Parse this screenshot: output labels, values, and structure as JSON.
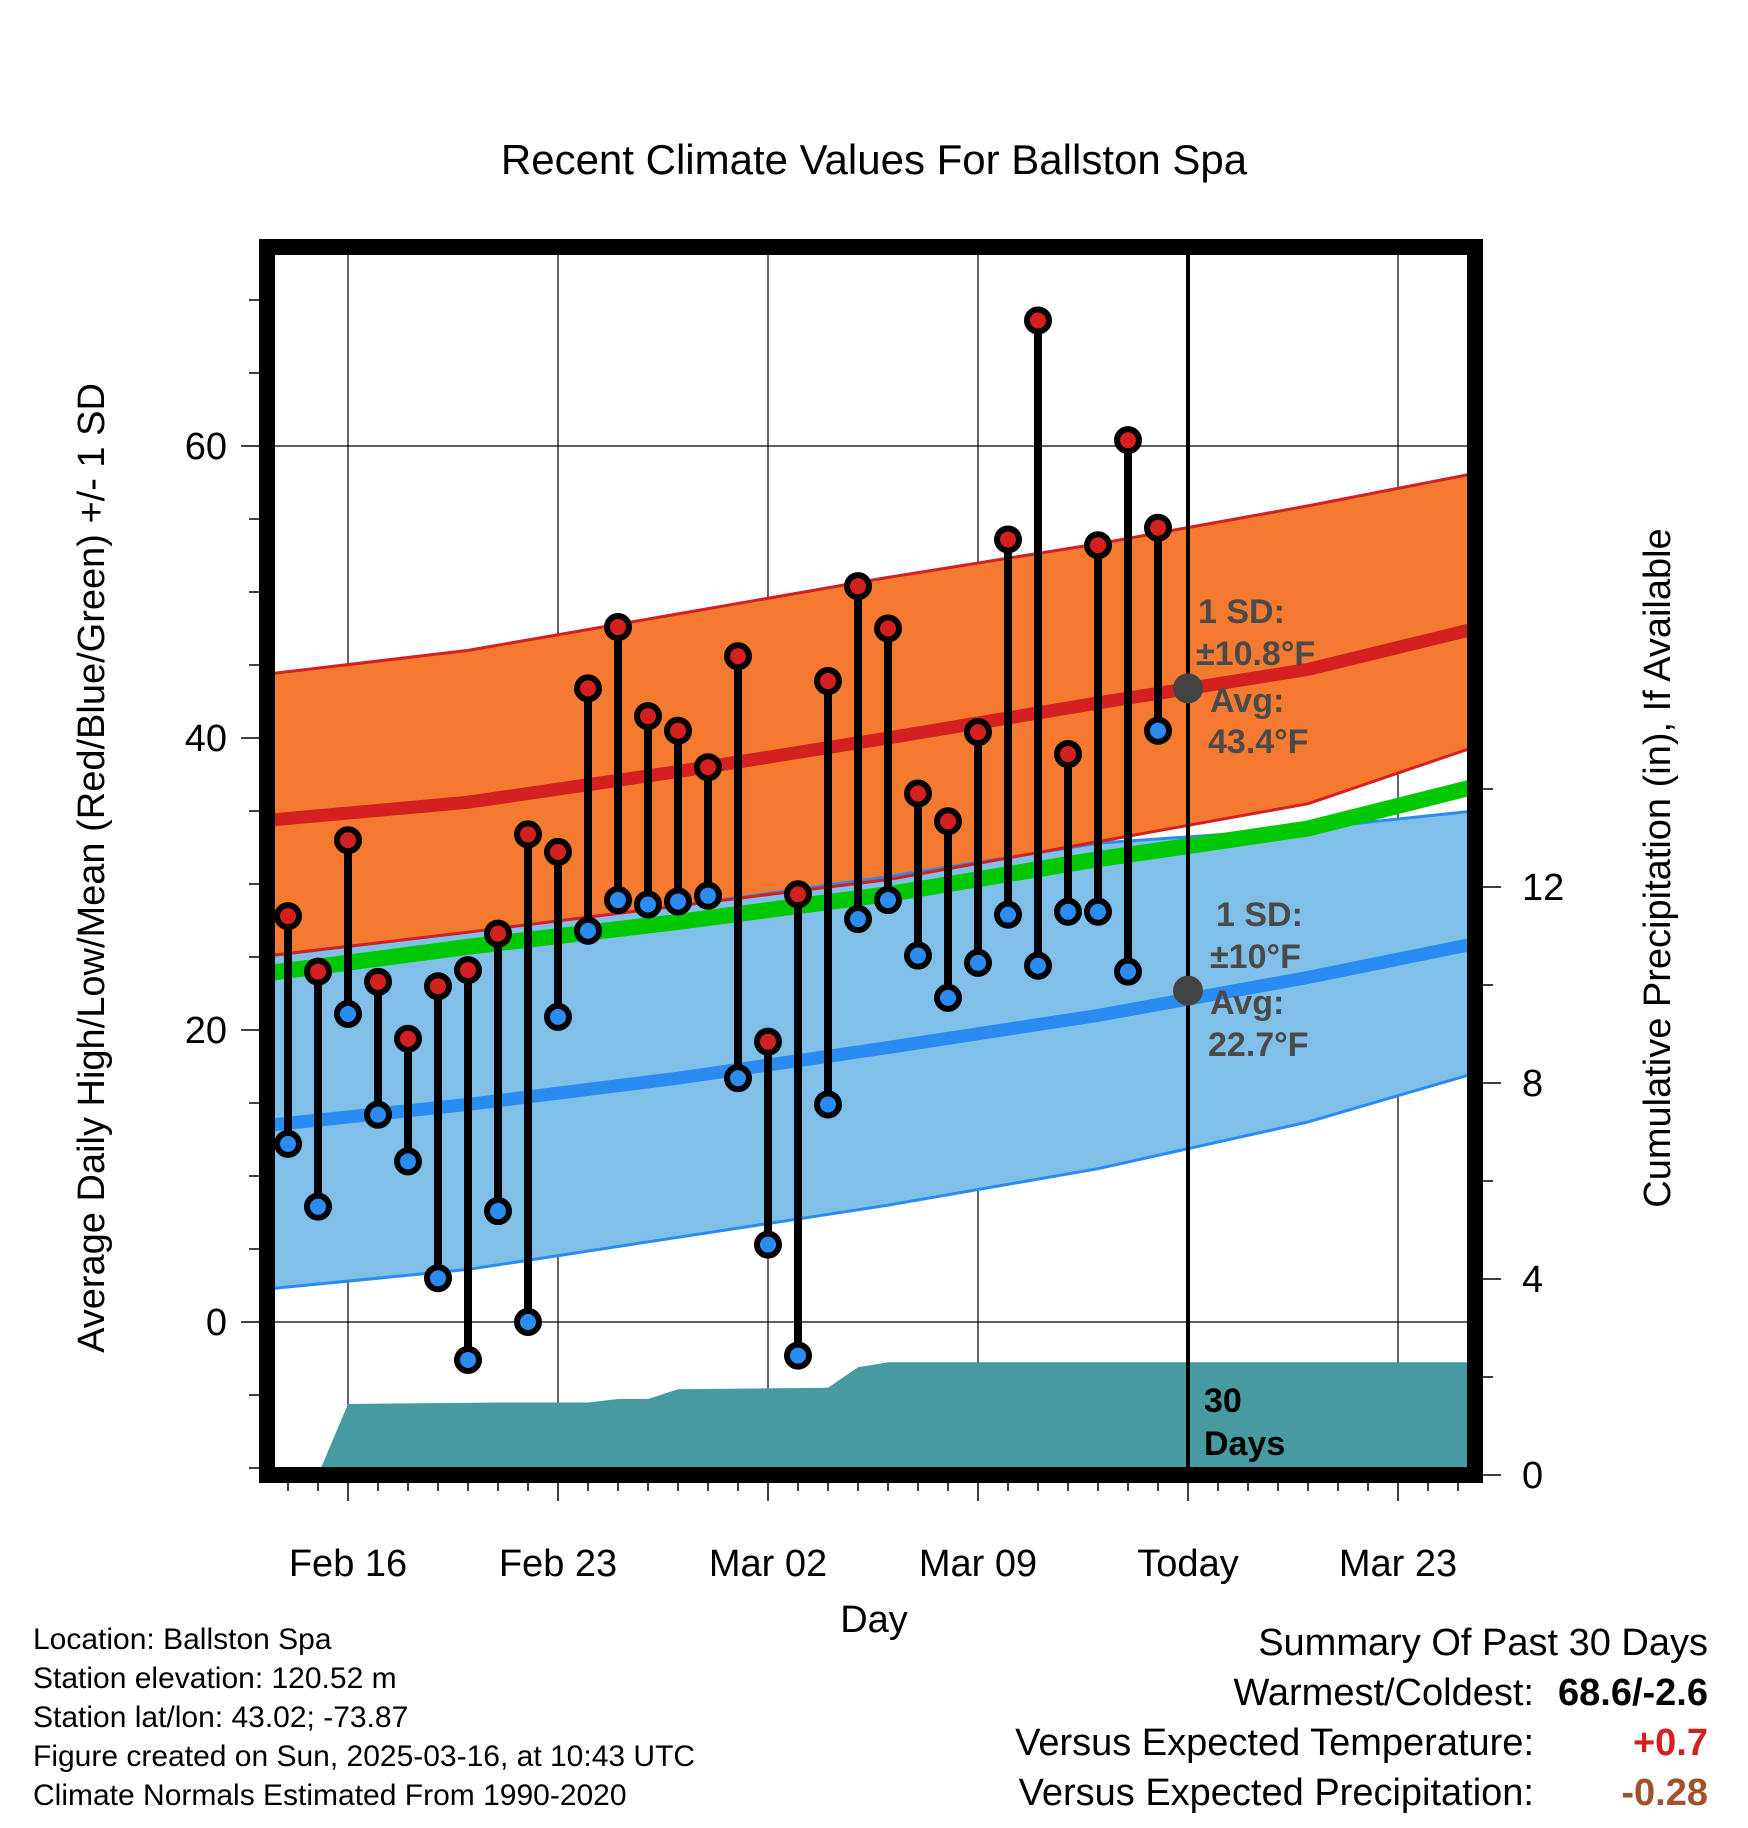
{
  "chart_data": {
    "type": "line",
    "title": "Recent Climate Values For Ballston Spa",
    "xlabel": "Day",
    "ylabel_left": "Average Daily High/Low/Mean (Red/Blue/Green) +/- 1 SD",
    "ylabel_right": "Cumulative Precipitation (in), If Available",
    "x_tick_labels": [
      "Feb 16",
      "Feb 23",
      "Mar 02",
      "Mar 09",
      "Today",
      "Mar 23"
    ],
    "x_tick_dates": [
      "2025-02-16",
      "2025-02-23",
      "2025-03-02",
      "2025-03-09",
      "2025-03-16",
      "2025-03-23"
    ],
    "xlim": [
      "2025-02-12",
      "2025-03-26"
    ],
    "ylim_left": [
      -10,
      73
    ],
    "yticks_left": [
      0,
      20,
      40,
      60
    ],
    "ylim_right": [
      0,
      24
    ],
    "yticks_right": [
      0,
      4,
      8,
      12
    ],
    "grid": true,
    "dates": [
      "2025-02-14",
      "2025-02-15",
      "2025-02-16",
      "2025-02-17",
      "2025-02-18",
      "2025-02-19",
      "2025-02-20",
      "2025-02-21",
      "2025-02-22",
      "2025-02-23",
      "2025-02-24",
      "2025-02-25",
      "2025-02-26",
      "2025-02-27",
      "2025-02-28",
      "2025-03-01",
      "2025-03-02",
      "2025-03-03",
      "2025-03-04",
      "2025-03-05",
      "2025-03-06",
      "2025-03-07",
      "2025-03-08",
      "2025-03-09",
      "2025-03-10",
      "2025-03-11",
      "2025-03-12",
      "2025-03-13",
      "2025-03-14",
      "2025-03-15"
    ],
    "series": [
      {
        "name": "High",
        "color": "#d42020",
        "values": [
          27.8,
          24.0,
          33.0,
          23.3,
          19.4,
          23.0,
          24.1,
          26.6,
          33.4,
          32.2,
          43.4,
          47.6,
          41.5,
          40.5,
          38.0,
          45.6,
          19.2,
          29.3,
          43.9,
          50.4,
          47.5,
          36.2,
          34.3,
          40.4,
          53.6,
          68.6,
          38.9,
          53.2,
          60.4,
          54.4
        ]
      },
      {
        "name": "Low",
        "color": "#2a8cf0",
        "values": [
          12.2,
          7.9,
          21.1,
          14.2,
          11.0,
          3.0,
          -2.6,
          7.6,
          0.0,
          20.9,
          26.8,
          28.9,
          28.6,
          28.8,
          29.2,
          16.7,
          5.3,
          -2.3,
          14.9,
          27.6,
          28.9,
          25.1,
          22.2,
          24.6,
          27.9,
          24.4,
          28.1,
          28.1,
          24.0,
          40.5
        ]
      }
    ],
    "normals": {
      "dates": [
        "2025-02-13",
        "2025-02-20",
        "2025-02-27",
        "2025-03-06",
        "2025-03-13",
        "2025-03-20",
        "2025-03-26"
      ],
      "high_avg": [
        34.3,
        35.6,
        37.7,
        40.0,
        42.4,
        44.7,
        47.7
      ],
      "high_sd_upper": [
        44.3,
        46.0,
        48.5,
        51.0,
        53.3,
        55.9,
        58.3
      ],
      "high_sd_lower": [
        25.0,
        26.7,
        28.5,
        30.3,
        32.9,
        35.5,
        39.7
      ],
      "mean_avg": [
        23.8,
        25.7,
        27.4,
        29.3,
        31.7,
        33.8,
        36.9
      ],
      "low_avg": [
        13.4,
        14.9,
        16.7,
        18.8,
        21.0,
        23.6,
        26.1
      ],
      "low_sd_upper": [
        25.0,
        26.7,
        28.5,
        30.5,
        32.8,
        33.8,
        35.1
      ],
      "low_sd_lower": [
        2.2,
        3.6,
        5.8,
        8.0,
        10.5,
        13.7,
        17.3
      ]
    },
    "cumulative_precip": {
      "dates": [
        "2025-02-14",
        "2025-02-15",
        "2025-02-16",
        "2025-02-21",
        "2025-02-24",
        "2025-02-25",
        "2025-02-26",
        "2025-02-27",
        "2025-03-04",
        "2025-03-05",
        "2025-03-06",
        "2025-03-26"
      ],
      "values": [
        0.0,
        0.0,
        1.45,
        1.48,
        1.48,
        1.55,
        1.55,
        1.75,
        1.78,
        2.2,
        2.3,
        2.3
      ]
    },
    "annotations": {
      "high_sd": "1 SD:",
      "high_sd_value": "±10.8°F",
      "high_avg": "Avg:",
      "high_avg_value": "43.4°F",
      "low_sd": "1 SD:",
      "low_sd_value": "±10°F",
      "low_avg": "Avg:",
      "low_avg_value": "22.7°F",
      "days_a": "30",
      "days_b": "Days"
    },
    "colors": {
      "high_band": "#f47a30",
      "high_line": "#d42020",
      "low_band": "#80c0e8",
      "low_line": "#2a8cf0",
      "mean_line": "#00c800",
      "precip": "#489aa2",
      "today_dot": "#444444"
    }
  },
  "info": {
    "location": "Location: Ballston Spa",
    "elevation": "Station elevation: 120.52 m",
    "latlon": "Station lat/lon: 43.02; -73.87",
    "created": "Figure created on Sun, 2025-03-16, at 10:43 UTC",
    "normals": "Climate Normals Estimated From 1990-2020"
  },
  "summary": {
    "title": "Summary Of Past 30 Days",
    "warmest_label": "Warmest/Coldest:",
    "warmest_value": "68.6/-2.6",
    "temp_label": "Versus Expected Temperature:",
    "temp_value": "+0.7",
    "temp_color": "#d42020",
    "precip_label": "Versus Expected Precipitation:",
    "precip_value": "-0.28",
    "precip_color": "#a0522d"
  }
}
